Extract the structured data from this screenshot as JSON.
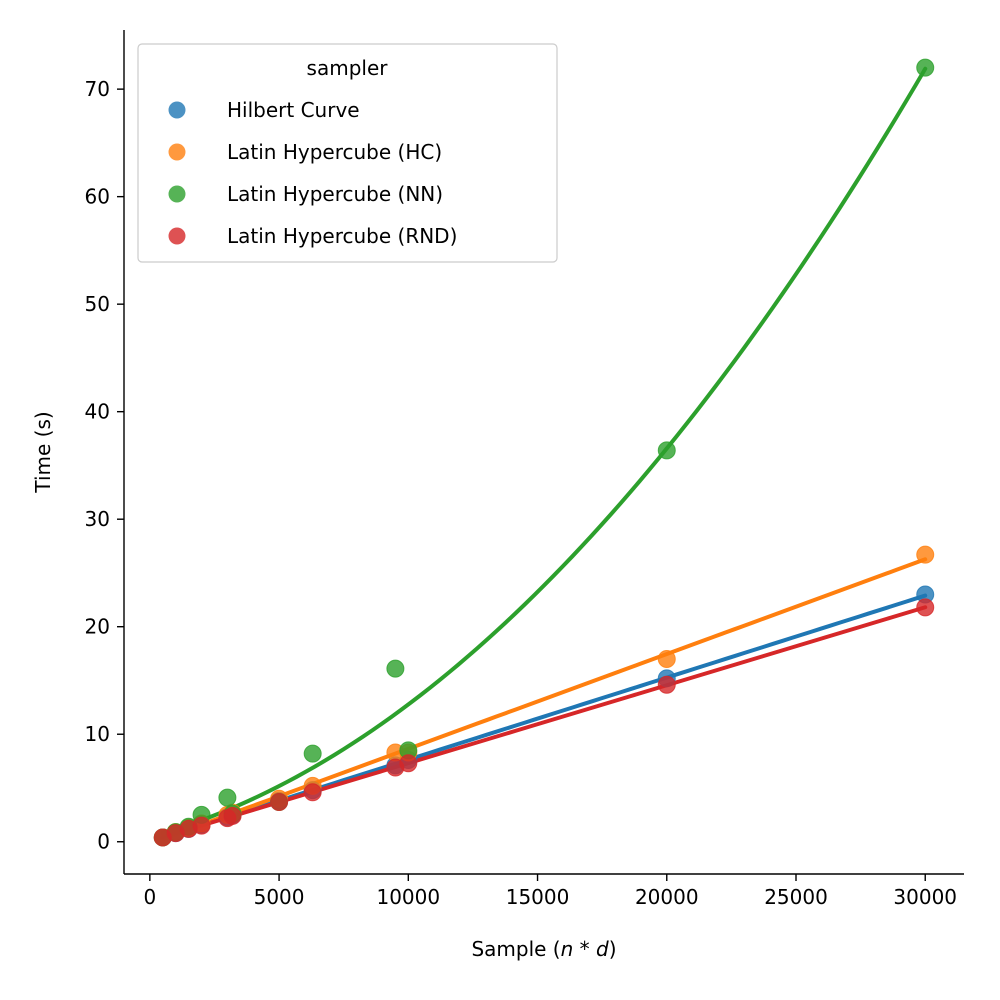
{
  "chart_data": {
    "type": "scatter",
    "title": "",
    "xlabel_prefix": "Sample (",
    "xlabel_n": "n",
    "xlabel_op": " * ",
    "xlabel_d": "d",
    "xlabel_suffix": ")",
    "ylabel": "Time (s)",
    "xlim": [
      -1000,
      31500
    ],
    "ylim": [
      -3,
      75.5
    ],
    "x_ticks": [
      0,
      5000,
      10000,
      15000,
      20000,
      25000,
      30000
    ],
    "y_ticks": [
      0,
      10,
      20,
      30,
      40,
      50,
      60,
      70
    ],
    "grid": false,
    "legend": {
      "title": "sampler",
      "position": "top-left"
    },
    "series": [
      {
        "name": "Hilbert Curve",
        "color": "#1f77b4",
        "points": [
          [
            500,
            0.4
          ],
          [
            1000,
            0.8
          ],
          [
            1500,
            1.2
          ],
          [
            2000,
            1.6
          ],
          [
            3000,
            2.3
          ],
          [
            3200,
            2.5
          ],
          [
            5000,
            3.8
          ],
          [
            6300,
            4.8
          ],
          [
            9500,
            7.1
          ],
          [
            10000,
            7.6
          ],
          [
            20000,
            15.2
          ],
          [
            30000,
            23.0
          ]
        ],
        "fit_degree": 1
      },
      {
        "name": "Latin Hypercube (HC)",
        "color": "#ff7f0e",
        "points": [
          [
            500,
            0.4
          ],
          [
            1000,
            0.9
          ],
          [
            1500,
            1.3
          ],
          [
            2000,
            1.7
          ],
          [
            3000,
            2.5
          ],
          [
            3200,
            2.7
          ],
          [
            5000,
            4.0
          ],
          [
            6300,
            5.2
          ],
          [
            9500,
            8.3
          ],
          [
            10000,
            8.3
          ],
          [
            20000,
            17.0
          ],
          [
            30000,
            26.7
          ]
        ],
        "fit_degree": 1
      },
      {
        "name": "Latin Hypercube (NN)",
        "color": "#2ca02c",
        "points": [
          [
            500,
            0.4
          ],
          [
            1000,
            0.9
          ],
          [
            1500,
            1.4
          ],
          [
            2000,
            2.5
          ],
          [
            3000,
            4.1
          ],
          [
            3200,
            2.6
          ],
          [
            5000,
            3.7
          ],
          [
            6300,
            8.2
          ],
          [
            9500,
            16.1
          ],
          [
            10000,
            8.5
          ],
          [
            20000,
            36.4
          ],
          [
            30000,
            72.0
          ]
        ],
        "fit_degree": 2
      },
      {
        "name": "Latin Hypercube (RND)",
        "color": "#d62728",
        "points": [
          [
            500,
            0.4
          ],
          [
            1000,
            0.8
          ],
          [
            1500,
            1.2
          ],
          [
            2000,
            1.5
          ],
          [
            3000,
            2.2
          ],
          [
            3200,
            2.4
          ],
          [
            5000,
            3.7
          ],
          [
            6300,
            4.6
          ],
          [
            9500,
            6.9
          ],
          [
            10000,
            7.3
          ],
          [
            20000,
            14.6
          ],
          [
            30000,
            21.8
          ]
        ],
        "fit_degree": 1
      }
    ]
  }
}
